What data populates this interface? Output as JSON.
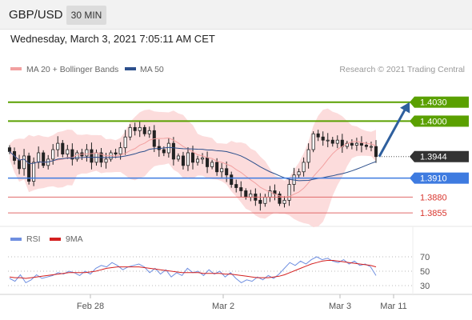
{
  "header": {
    "symbol": "GBP/USD",
    "timeframe": "30 MIN",
    "datetime": "Wednesday, March 3, 2021 7:05:11 AM CET"
  },
  "legend": {
    "ma20_bb": "MA 20 + Bollinger Bands",
    "ma50": "MA 50",
    "rsi": "RSI",
    "ma9": "9MA",
    "credit": "Research © 2021 Trading Central"
  },
  "colors": {
    "green_level": "#5aa000",
    "blue_level": "#3e7be0",
    "red_level": "#e06a6a",
    "current_price_tag": "#333333",
    "arrow": "#2e5f9e",
    "bollinger_fill": "#fbd6d6",
    "ma20": "#f2a0a0",
    "ma50": "#2c4f8c",
    "rsi": "#6f8fe0",
    "rsi_ma": "#d42020"
  },
  "chart_data": [
    {
      "type": "candlestick",
      "y_range": [
        1.3835,
        1.4065
      ],
      "x_labels": [
        "Feb 28",
        "Mar 2",
        "Mar 3",
        "Mar 11"
      ],
      "levels": [
        {
          "price": "1.4030",
          "style": "resistance-green"
        },
        {
          "price": "1.4000",
          "style": "resistance-green"
        },
        {
          "price": "1.3944",
          "style": "current-price"
        },
        {
          "price": "1.3910",
          "style": "pivot-blue"
        },
        {
          "price": "1.3880",
          "style": "support-red"
        },
        {
          "price": "1.3855",
          "style": "support-red"
        }
      ],
      "projection": {
        "from": 1.3944,
        "to": 1.403
      },
      "close_series": [
        1.3952,
        1.3938,
        1.3925,
        1.3945,
        1.3905,
        1.3935,
        1.395,
        1.393,
        1.394,
        1.3955,
        1.3965,
        1.3948,
        1.3955,
        1.394,
        1.395,
        1.3945,
        1.3955,
        1.3935,
        1.395,
        1.3935,
        1.394,
        1.395,
        1.3948,
        1.3958,
        1.3975,
        1.399,
        1.3985,
        1.399,
        1.398,
        1.3985,
        1.396,
        1.3955,
        1.395,
        1.3965,
        1.394,
        1.3945,
        1.393,
        1.395,
        1.3935,
        1.394,
        1.3942,
        1.3928,
        1.3935,
        1.392,
        1.3925,
        1.3915,
        1.39,
        1.3895,
        1.389,
        1.388,
        1.3885,
        1.3875,
        1.387,
        1.388,
        1.389,
        1.3885,
        1.387,
        1.3875,
        1.39,
        1.3915,
        1.392,
        1.3935,
        1.3955,
        1.398,
        1.3975,
        1.397,
        1.397,
        1.3965,
        1.397,
        1.396,
        1.3965,
        1.3962,
        1.3965,
        1.3962,
        1.396,
        1.396,
        1.3944
      ]
    },
    {
      "type": "line",
      "name": "RSI",
      "y_ticks": [
        70,
        50,
        30
      ],
      "y_range": [
        20,
        80
      ],
      "series": [
        {
          "name": "RSI",
          "values": [
            40,
            36,
            45,
            34,
            38,
            45,
            40,
            42,
            44,
            48,
            46,
            50,
            48,
            44,
            50,
            46,
            54,
            58,
            56,
            62,
            58,
            52,
            56,
            58,
            60,
            56,
            48,
            54,
            46,
            52,
            42,
            48,
            44,
            54,
            48,
            50,
            44,
            52,
            46,
            50,
            42,
            48,
            40,
            34,
            38,
            36,
            42,
            38,
            44,
            40,
            46,
            54,
            62,
            58,
            64,
            60,
            66,
            70,
            66,
            68,
            64,
            62,
            66,
            60,
            64,
            58,
            60,
            56,
            44
          ]
        },
        {
          "name": "9MA",
          "values": [
            42,
            41,
            41,
            40,
            41,
            42,
            43,
            44,
            45,
            46,
            47,
            48,
            48,
            48,
            48,
            49,
            50,
            52,
            54,
            55,
            56,
            56,
            56,
            56,
            56,
            55,
            54,
            53,
            52,
            51,
            50,
            49,
            48,
            48,
            48,
            48,
            47,
            47,
            47,
            47,
            46,
            46,
            45,
            44,
            43,
            42,
            41,
            41,
            41,
            42,
            43,
            45,
            48,
            51,
            54,
            57,
            60,
            62,
            64,
            65,
            65,
            64,
            63,
            62,
            61,
            60,
            59,
            58,
            56
          ]
        }
      ]
    }
  ]
}
